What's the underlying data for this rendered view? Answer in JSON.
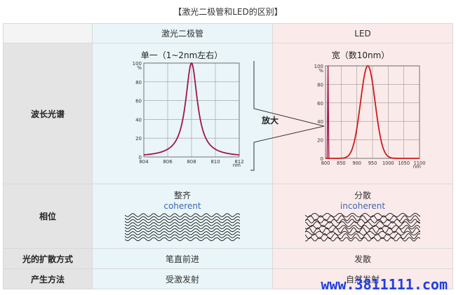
{
  "title": "【激光二极管和LED的区别】",
  "header": {
    "laser": "激光二极管",
    "led": "LED"
  },
  "rows": {
    "spectrum": "波长光谱",
    "phase": "相位",
    "spread": "光的扩散方式",
    "method": "产生方法"
  },
  "laser": {
    "spectrum_caption": "单一（1~2nm左右）",
    "phase_label": "整齐",
    "phase_sub": "coherent",
    "spread": "笔直前进",
    "method": "受激发射"
  },
  "led": {
    "spectrum_caption": "宽（数10nm）",
    "phase_label": "分散",
    "phase_sub": "incoherent",
    "spread": "发散",
    "method": "自然发射"
  },
  "zoom_label": "放大",
  "watermark": "www.3811111.com",
  "chart_data": [
    {
      "type": "line",
      "x_unit": "nm",
      "y_unit": "%",
      "xlim": [
        804,
        812
      ],
      "ylim": [
        0,
        100
      ],
      "x_ticks": [
        "804",
        "806",
        "808",
        "810",
        "812"
      ],
      "y_ticks": [
        "0",
        "20",
        "40",
        "60",
        "80",
        "100"
      ],
      "peak_x": 808,
      "peak_y": 100,
      "fwhm": 1.2,
      "color": "#a3144a"
    },
    {
      "type": "line",
      "x_unit": "nm",
      "y_unit": "%",
      "xlim": [
        800,
        1100
      ],
      "ylim": [
        0,
        100
      ],
      "x_ticks": [
        "800",
        "850",
        "900",
        "950",
        "1000",
        "1050",
        "1100"
      ],
      "y_ticks": [
        "0",
        "20",
        "40",
        "60",
        "80",
        "100"
      ],
      "peak_x": 935,
      "peak_y": 100,
      "fwhm": 55,
      "color": "#d01a1a",
      "laser_line_color": "#a3144a"
    }
  ]
}
